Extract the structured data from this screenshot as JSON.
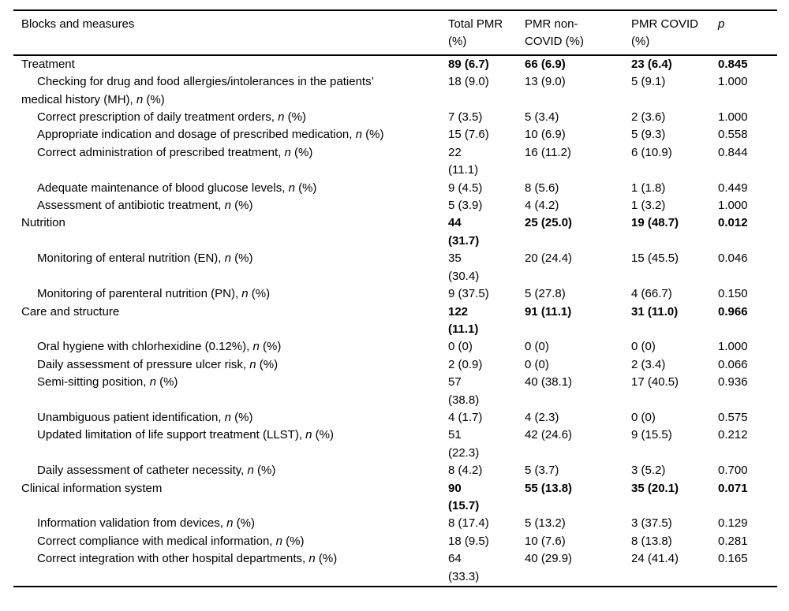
{
  "table": {
    "columns": [
      {
        "label": "Blocks and measures"
      },
      {
        "label": "Total PMR\n(%)"
      },
      {
        "label": "PMR non-\nCOVID (%)"
      },
      {
        "label": "PMR COVID\n(%)"
      },
      {
        "label": "p"
      }
    ],
    "n_suffix": {
      "pre": ", ",
      "n": "n",
      "post": " (%)"
    },
    "rows": [
      {
        "type": "section",
        "label": "Treatment",
        "n_suffix": false,
        "values": [
          "89 (6.7)",
          "66 (6.9)",
          "23 (6.4)",
          "0.845"
        ]
      },
      {
        "type": "item",
        "label": "Checking for drug and food allergies/intolerances in the patients’\nmedical history (MH)",
        "n_suffix": true,
        "values": [
          "18 (9.0)",
          "13 (9.0)",
          "5 (9.1)",
          "1.000"
        ]
      },
      {
        "type": "item",
        "label": "Correct prescription of daily treatment orders",
        "n_suffix": true,
        "values": [
          "7 (3.5)",
          "5 (3.4)",
          "2 (3.6)",
          "1.000"
        ]
      },
      {
        "type": "item",
        "label": "Appropriate indication and dosage of prescribed medication",
        "n_suffix": true,
        "values": [
          "15 (7.6)",
          "10 (6.9)",
          "5 (9.3)",
          "0.558"
        ]
      },
      {
        "type": "item",
        "label": "Correct administration of prescribed treatment",
        "n_suffix": true,
        "values": [
          "22\n(11.1)",
          "16 (11.2)",
          "6 (10.9)",
          "0.844"
        ]
      },
      {
        "type": "item",
        "label": "Adequate maintenance of blood glucose levels",
        "n_suffix": true,
        "values": [
          "9 (4.5)",
          "8 (5.6)",
          "1 (1.8)",
          "0.449"
        ]
      },
      {
        "type": "item",
        "label": "Assessment of antibiotic treatment",
        "n_suffix": true,
        "values": [
          "5 (3.9)",
          "4 (4.2)",
          "1 (3.2)",
          "1.000"
        ]
      },
      {
        "type": "section",
        "label": "Nutrition",
        "n_suffix": false,
        "values": [
          "44\n(31.7)",
          "25 (25.0)",
          "19 (48.7)",
          "0.012"
        ]
      },
      {
        "type": "item",
        "label": "Monitoring of enteral nutrition (EN)",
        "n_suffix": true,
        "values": [
          "35\n(30.4)",
          "20 (24.4)",
          "15 (45.5)",
          "0.046"
        ]
      },
      {
        "type": "item",
        "label": "Monitoring of parenteral nutrition (PN)",
        "n_suffix": true,
        "values": [
          "9 (37.5)",
          "5 (27.8)",
          "4 (66.7)",
          "0.150"
        ]
      },
      {
        "type": "section",
        "label": "Care and structure",
        "n_suffix": false,
        "values": [
          "122\n(11.1)",
          "91 (11.1)",
          "31 (11.0)",
          "0.966"
        ]
      },
      {
        "type": "item",
        "label": "Oral hygiene with chlorhexidine (0.12%)",
        "n_suffix": true,
        "values": [
          "0 (0)",
          "0 (0)",
          "0 (0)",
          "1.000"
        ]
      },
      {
        "type": "item",
        "label": "Daily assessment of pressure ulcer risk",
        "n_suffix": true,
        "values": [
          "2 (0.9)",
          "0 (0)",
          "2 (3.4)",
          "0.066"
        ]
      },
      {
        "type": "item",
        "label": "Semi-sitting position",
        "n_suffix": true,
        "values": [
          "57\n(38.8)",
          "40 (38.1)",
          "17 (40.5)",
          "0.936"
        ]
      },
      {
        "type": "item",
        "label": "Unambiguous patient identification",
        "n_suffix": true,
        "values": [
          "4 (1.7)",
          "4 (2.3)",
          "0 (0)",
          "0.575"
        ]
      },
      {
        "type": "item",
        "label": "Updated limitation of life support treatment (LLST)",
        "n_suffix": true,
        "values": [
          "51\n(22.3)",
          "42 (24.6)",
          "9 (15.5)",
          "0.212"
        ]
      },
      {
        "type": "item",
        "label": "Daily assessment of catheter necessity",
        "n_suffix": true,
        "values": [
          "8 (4.2)",
          "5 (3.7)",
          "3 (5.2)",
          "0.700"
        ]
      },
      {
        "type": "section",
        "label": "Clinical information system",
        "n_suffix": false,
        "values": [
          "90\n(15.7)",
          "55 (13.8)",
          "35 (20.1)",
          "0.071"
        ]
      },
      {
        "type": "item",
        "label": "Information validation from devices",
        "n_suffix": true,
        "values": [
          "8 (17.4)",
          "5 (13.2)",
          "3 (37.5)",
          "0.129"
        ]
      },
      {
        "type": "item",
        "label": "Correct compliance with medical information",
        "n_suffix": true,
        "values": [
          "18 (9.5)",
          "10 (7.6)",
          "8 (13.8)",
          "0.281"
        ]
      },
      {
        "type": "item",
        "label": "Correct integration with other hospital departments",
        "n_suffix": true,
        "values": [
          "64\n(33.3)",
          "40 (29.9)",
          "24 (41.4)",
          "0.165"
        ]
      }
    ]
  },
  "colors": {
    "text": "#000000",
    "background": "#ffffff",
    "rule": "#000000"
  }
}
